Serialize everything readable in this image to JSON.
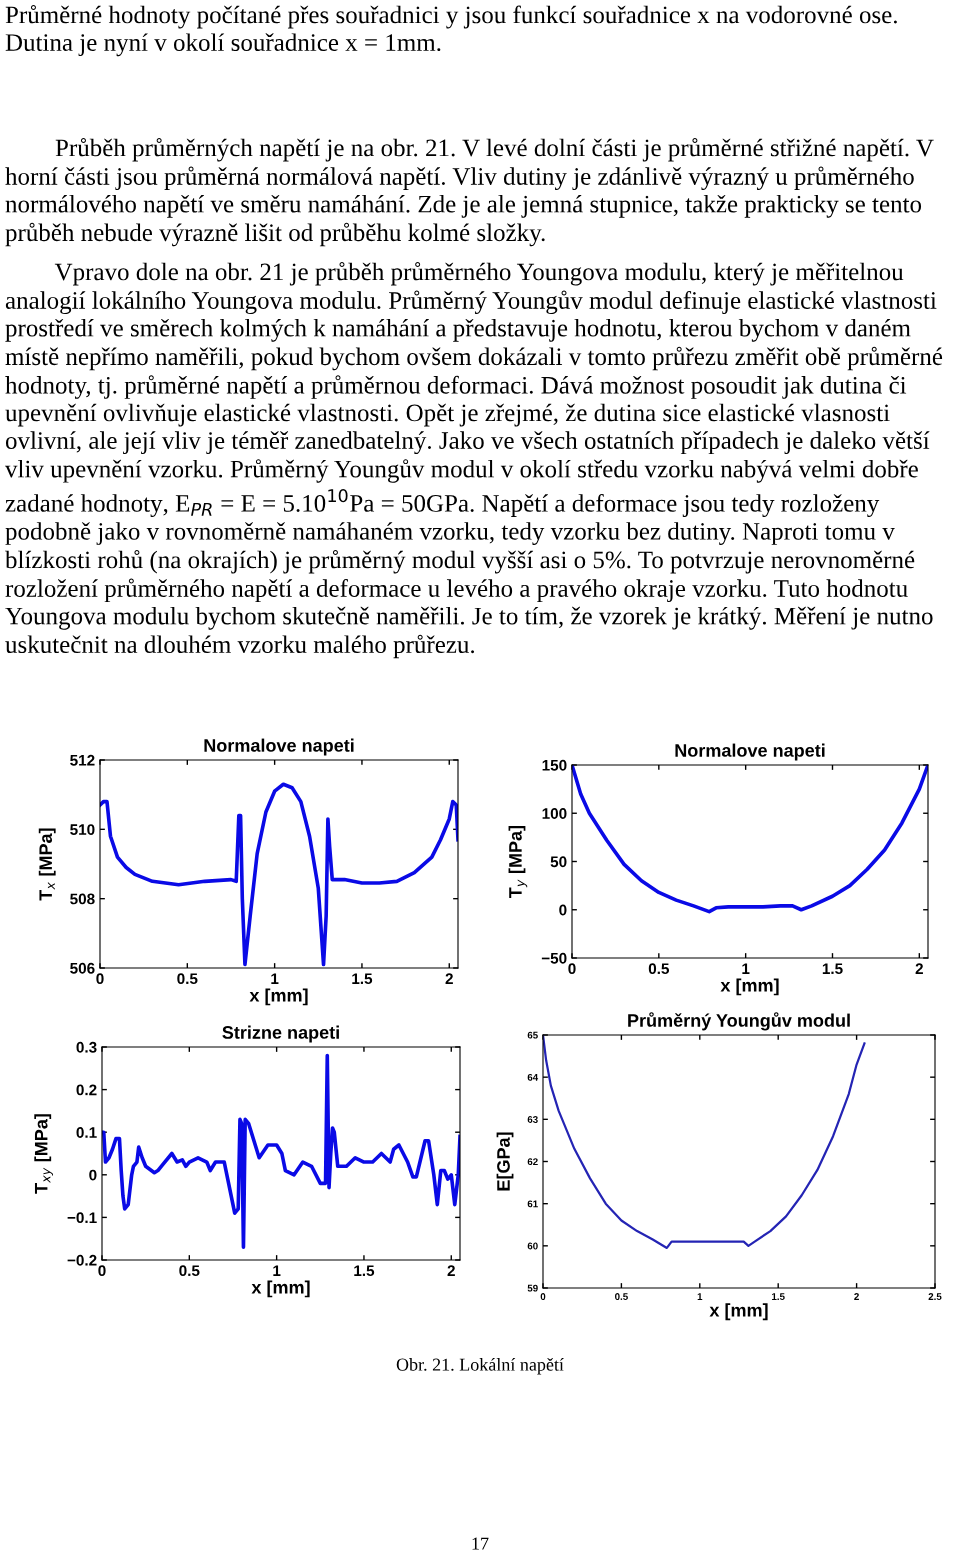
{
  "chart_data": [
    {
      "type": "line",
      "title": "Normalove napeti",
      "xlabel": "x [mm]",
      "ylabel": "T$_{x}$ [MPa]",
      "annotations": [
        "Průměrné hodnoty počítané přes souřadnici y jsou funkcí souřadnice x na vodorovné ose. Dutina je nyní v okolí souřadnice x = 1mm.",
        "        Průběh průměrných napětí je na obr. 21. V levé dolní části je průměrné střižné napětí. V horní části jsou průměrná normálová napětí. Vliv dutiny je zdánlivě výrazný u průměrného normálového napětí ve směru namáhání. Zde je ale jemná stupnice, takže prakticky se tento průběh nebude výrazně lišit od průběhu kolmé složky.",
        "        Vpravo dole na obr. 21 je průběh průměrného Youngova modulu, který je měřitelnou analogií lokálního Youngova modulu. Průměrný Youngův modul definuje elastické vlastnosti prostředí ve směrech kolmých k namáhání a představuje hodnotu, kterou bychom v daném místě nepřímo naměřili, pokud bychom ovšem dokázali v tomto průřezu změřit obě průměrné hodnoty, tj. průměrné napětí a průměrnou deformaci. Dává možnost posoudit jak dutina či upevnění ovlivňuje elastické vlastnosti. Opět je zřejmé, že dutina sice elastické vlasnosti ovlivní, ale její vliv je téměř zanedbatelný. Jako ve všech ostatních případech je daleko větší vliv upevnění vzorku. Průměrný Youngův modul v okolí středu vzorku nabývá velmi dobře zadané hodnoty, E$_{PR}$ = E = 5.10$^{10}$Pa = 50GPa. Napětí a deformace jsou tedy rozloženy podobně jako v rovnoměrně namáhaném vzorku, tedy vzorku bez dutiny. Naproti tomu v blízkosti rohů (na okrajích) je průměrný modul vyšší asi o 5%. To potvrzuje nerovnoměrné rozložení průměrného napětí a deformace u levého a pravého okraje vzorku. Tuto hodnotu Youngova modulu bychom skutečně naměřili. Je to tím, že vzorek je krátký. Měření je nutno uskutečnit na dlouhém vzorku malého průřezu."
      ],
      "xlim": [
        0,
        2.05
      ],
      "xticks": [
        0,
        0.5,
        1,
        1.5,
        2
      ],
      "ylim": [
        506,
        512
      ],
      "yticks": [
        506,
        508,
        510,
        512
      ],
      "grid": false,
      "legend": false,
      "series": [
        {
          "color": "#0a0ae6",
          "x": [
            0,
            0.02,
            0.04,
            0.06,
            0.1,
            0.15,
            0.2,
            0.3,
            0.45,
            0.6,
            0.75,
            0.78,
            0.795,
            0.805,
            0.815,
            0.83,
            0.86,
            0.9,
            0.95,
            1.0,
            1.05,
            1.1,
            1.15,
            1.2,
            1.25,
            1.28,
            1.295,
            1.305,
            1.315,
            1.33,
            1.4,
            1.5,
            1.6,
            1.7,
            1.8,
            1.9,
            1.95,
            2.0,
            2.02,
            2.04,
            2.05
          ],
          "values": [
            510.7,
            510.8,
            510.8,
            509.8,
            509.2,
            508.9,
            508.7,
            508.5,
            508.4,
            508.5,
            508.55,
            508.5,
            510.4,
            510.4,
            508,
            506.1,
            507.5,
            509.3,
            510.5,
            511.1,
            511.3,
            511.2,
            510.8,
            509.8,
            508.3,
            506.1,
            507.5,
            510.3,
            509.5,
            508.55,
            508.55,
            508.45,
            508.45,
            508.5,
            508.75,
            509.2,
            509.7,
            510.3,
            510.8,
            510.7,
            509.7
          ]
        }
      ]
    },
    {
      "type": "line",
      "title": "Normalove napeti",
      "xlabel": "x [mm]",
      "ylabel": "T$_{y}$ [MPa]",
      "xlim": [
        0,
        2.05
      ],
      "xticks": [
        0,
        0.5,
        1,
        1.5,
        2
      ],
      "ylim": [
        -50,
        150
      ],
      "yticks": [
        {
          "value": -50,
          "label": "−50"
        },
        0,
        50,
        100,
        150
      ],
      "grid": false,
      "legend": false,
      "series": [
        {
          "color": "#0a0ae6",
          "x": [
            0,
            0.05,
            0.1,
            0.2,
            0.3,
            0.4,
            0.5,
            0.6,
            0.7,
            0.79,
            0.83,
            0.9,
            1.0,
            1.1,
            1.2,
            1.27,
            1.32,
            1.38,
            1.5,
            1.6,
            1.7,
            1.8,
            1.9,
            2.0,
            2.05
          ],
          "values": [
            150,
            120,
            100,
            72,
            47,
            30,
            18,
            10,
            4,
            -2,
            2,
            3,
            3,
            3,
            4,
            4,
            0,
            4,
            14,
            25,
            42,
            62,
            90,
            125,
            150
          ]
        }
      ]
    },
    {
      "type": "line",
      "title": "Strizne napeti",
      "xlabel": "x [mm]",
      "ylabel": "T$_{xy}$ [MPa]",
      "xlim": [
        0,
        2.05
      ],
      "xticks": [
        0,
        0.5,
        1,
        1.5,
        2
      ],
      "ylim": [
        -0.2,
        0.3
      ],
      "yticks": [
        {
          "value": -0.2,
          "label": "−0.2"
        },
        {
          "value": -0.1,
          "label": "−0.1"
        },
        0,
        0.1,
        0.2,
        0.3
      ],
      "grid": false,
      "legend": false,
      "series": [
        {
          "color": "#0a0ae6",
          "x": [
            0,
            0.01,
            0.02,
            0.04,
            0.06,
            0.08,
            0.1,
            0.11,
            0.12,
            0.13,
            0.15,
            0.17,
            0.18,
            0.2,
            0.21,
            0.23,
            0.25,
            0.3,
            0.32,
            0.35,
            0.4,
            0.43,
            0.46,
            0.48,
            0.5,
            0.55,
            0.6,
            0.62,
            0.65,
            0.67,
            0.7,
            0.74,
            0.76,
            0.78,
            0.79,
            0.8,
            0.81,
            0.82,
            0.84,
            0.87,
            0.9,
            0.95,
            1.0,
            1.03,
            1.05,
            1.1,
            1.15,
            1.2,
            1.25,
            1.28,
            1.29,
            1.3,
            1.31,
            1.32,
            1.33,
            1.35,
            1.4,
            1.45,
            1.5,
            1.55,
            1.6,
            1.65,
            1.67,
            1.7,
            1.75,
            1.78,
            1.8,
            1.85,
            1.87,
            1.9,
            1.92,
            1.94,
            1.96,
            1.98,
            2.0,
            2.02,
            2.04,
            2.05
          ],
          "values": [
            0.1,
            0.1,
            0.03,
            0.04,
            0.06,
            0.085,
            0.085,
            0.01,
            -0.05,
            -0.08,
            -0.07,
            0.0,
            0.02,
            0.03,
            0.065,
            0.04,
            0.02,
            0.005,
            0.01,
            0.025,
            0.05,
            0.03,
            0.035,
            0.02,
            0.03,
            0.04,
            0.03,
            0.01,
            0.03,
            0.03,
            0.03,
            -0.05,
            -0.09,
            -0.08,
            0.13,
            0.12,
            -0.17,
            0.13,
            0.12,
            0.08,
            0.04,
            0.07,
            0.07,
            0.05,
            0.01,
            0.0,
            0.03,
            0.02,
            -0.02,
            -0.02,
            0.28,
            -0.03,
            0.05,
            0.11,
            0.1,
            0.02,
            0.02,
            0.04,
            0.03,
            0.03,
            0.05,
            0.03,
            0.06,
            0.07,
            0.03,
            -0.005,
            -0.005,
            0.08,
            0.08,
            0.0,
            -0.07,
            0.01,
            0.01,
            -0.01,
            0.0,
            -0.07,
            0.0,
            0.09
          ]
        }
      ]
    },
    {
      "type": "line",
      "title": "Průměrný Youngův modul",
      "xlabel": "x [mm]",
      "ylabel": "E[GPa]",
      "annotations": [
        "Obr. 21. Lokální napětí",
        "17"
      ],
      "xlim": [
        0,
        2.5
      ],
      "xticks": [
        0,
        0.5,
        1,
        1.5,
        2,
        2.5
      ],
      "ylim": [
        59,
        65
      ],
      "yticks": [
        59,
        60,
        61,
        62,
        63,
        64,
        65
      ],
      "grid": false,
      "legend": false,
      "series": [
        {
          "color": "#2424b4",
          "x": [
            0,
            0.02,
            0.05,
            0.1,
            0.2,
            0.3,
            0.4,
            0.5,
            0.6,
            0.7,
            0.79,
            0.82,
            0.9,
            1.0,
            1.1,
            1.2,
            1.28,
            1.31,
            1.35,
            1.45,
            1.55,
            1.65,
            1.75,
            1.85,
            1.95,
            2.0,
            2.05
          ],
          "values": [
            65.0,
            64.4,
            63.8,
            63.2,
            62.3,
            61.6,
            61.0,
            60.6,
            60.35,
            60.15,
            59.95,
            60.1,
            60.1,
            60.1,
            60.1,
            60.1,
            60.1,
            60.0,
            60.1,
            60.35,
            60.7,
            61.2,
            61.8,
            62.6,
            63.6,
            64.3,
            64.8
          ]
        }
      ]
    }
  ]
}
